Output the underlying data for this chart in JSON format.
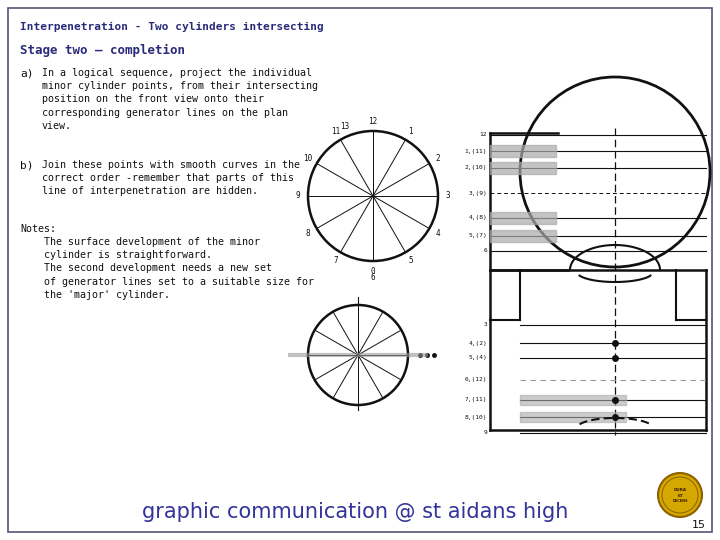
{
  "title": "Interpenetration - Two cylinders intersecting",
  "stage": "Stage two — completion",
  "point_a_label": "a)",
  "point_a_text": "In a logical sequence, project the individual\nminor cylinder points, from their intersecting\nposition on the front view onto their\ncorresponding generator lines on the plan\nview.",
  "point_b_label": "b)",
  "point_b_text": "Join these points with smooth curves in the\ncorrect order -remember that parts of this\nline of interpenetration are hidden.",
  "notes_label": "Notes:",
  "notes_text": "    The surface development of the minor\n    cylinder is straightforward.\n    The second development needs a new set\n    of generator lines set to a suitable size for\n    the 'major' cylinder.",
  "footer_text": "graphic communication @ st aidans high",
  "page_number": "15",
  "bg_color": "#ffffff",
  "border_color": "#555577",
  "title_color": "#2a2a7a",
  "stage_color": "#2a2a7a",
  "text_color": "#111111",
  "footer_color": "#333399",
  "diagram_color": "#111111",
  "gray_color": "#999999",
  "gray_bar_color": "#aaaaaa",
  "logo_yellow": "#d4a800",
  "logo_ring": "#8b6000"
}
